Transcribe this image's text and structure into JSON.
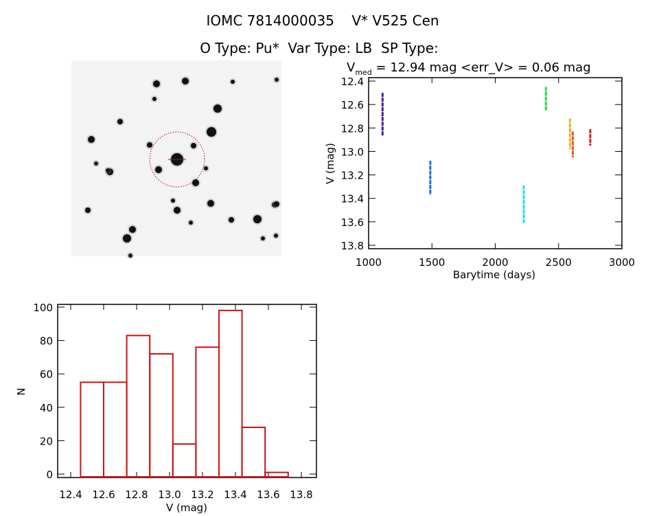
{
  "header": {
    "title": "IOMC 7814000035    V* V525 Cen",
    "subtitle": "O Type: Pu*  Var Type: LB  SP Type:"
  },
  "image_stamp": {
    "description_icon": "sky-image",
    "target_marker_color": "#cc0000"
  },
  "chart_data": [
    {
      "type": "scatter",
      "title_main": "V",
      "title_sub": "med",
      "title_rest": " = 12.94 mag <err_V> = 0.06 mag",
      "xlabel": "Barytime (days)",
      "ylabel": "V (mag)",
      "xlim": [
        1000,
        3000
      ],
      "ylim": [
        13.83,
        12.37
      ],
      "y_inverted": true,
      "xticks": [
        "1000",
        "1500",
        "2000",
        "2500",
        "3000"
      ],
      "yticks": [
        "12.4",
        "12.6",
        "12.8",
        "13.0",
        "13.2",
        "13.4",
        "13.6",
        "13.8"
      ],
      "clusters": [
        {
          "t": 1110,
          "v_min": 12.5,
          "v_max": 12.87,
          "color": "#4b1a9a"
        },
        {
          "t": 1487,
          "v_min": 13.08,
          "v_max": 13.37,
          "color": "#1f6fd0"
        },
        {
          "t": 2225,
          "v_min": 13.29,
          "v_max": 13.61,
          "color": "#22e0ea"
        },
        {
          "t": 2400,
          "v_min": 12.45,
          "v_max": 12.65,
          "color": "#22dd44"
        },
        {
          "t": 2590,
          "v_min": 12.72,
          "v_max": 12.98,
          "color": "#e8b020"
        },
        {
          "t": 2612,
          "v_min": 12.83,
          "v_max": 13.05,
          "color": "#e05a18"
        },
        {
          "t": 2750,
          "v_min": 12.81,
          "v_max": 12.95,
          "color": "#d42020"
        }
      ]
    },
    {
      "type": "bar",
      "xlabel": "V (mag)",
      "ylabel": "N",
      "xlim": [
        12.32,
        13.89
      ],
      "ylim": [
        0,
        101
      ],
      "xticks": [
        "12.4",
        "12.6",
        "12.8",
        "13.0",
        "13.2",
        "13.4",
        "13.6",
        "13.8"
      ],
      "yticks": [
        "0",
        "20",
        "40",
        "60",
        "80",
        "100"
      ],
      "bin_edges": [
        12.46,
        12.6,
        12.74,
        12.88,
        13.02,
        13.16,
        13.3,
        13.44,
        13.58,
        13.72
      ],
      "counts": [
        55,
        55,
        83,
        72,
        18,
        76,
        98,
        28,
        1
      ],
      "color": "#cc1111"
    }
  ]
}
